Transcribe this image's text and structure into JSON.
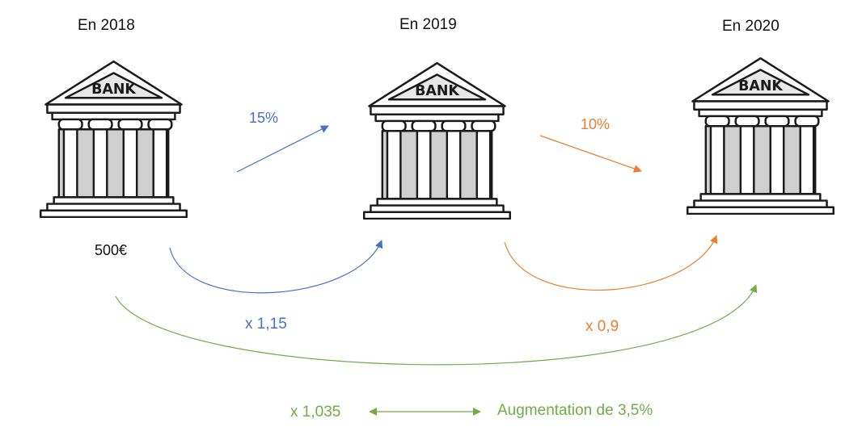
{
  "years": [
    {
      "label": "En 2018"
    },
    {
      "label": "En 2019"
    },
    {
      "label": "En 2020"
    }
  ],
  "bank_sign": "BANK",
  "initial_amount": "500€",
  "rates": {
    "first": {
      "label": "15%",
      "color": "#4472C4"
    },
    "second": {
      "label": "10%",
      "color": "#ED7D31"
    }
  },
  "multipliers": {
    "first": {
      "label": "x 1,15",
      "color": "#4472C4"
    },
    "second": {
      "label": "x 0,9",
      "color": "#ED7D31"
    },
    "global": {
      "label": "x 1,035",
      "color": "#70AD47"
    }
  },
  "equivalence": {
    "label": "Augmentation de 3,5%",
    "color": "#70AD47"
  }
}
